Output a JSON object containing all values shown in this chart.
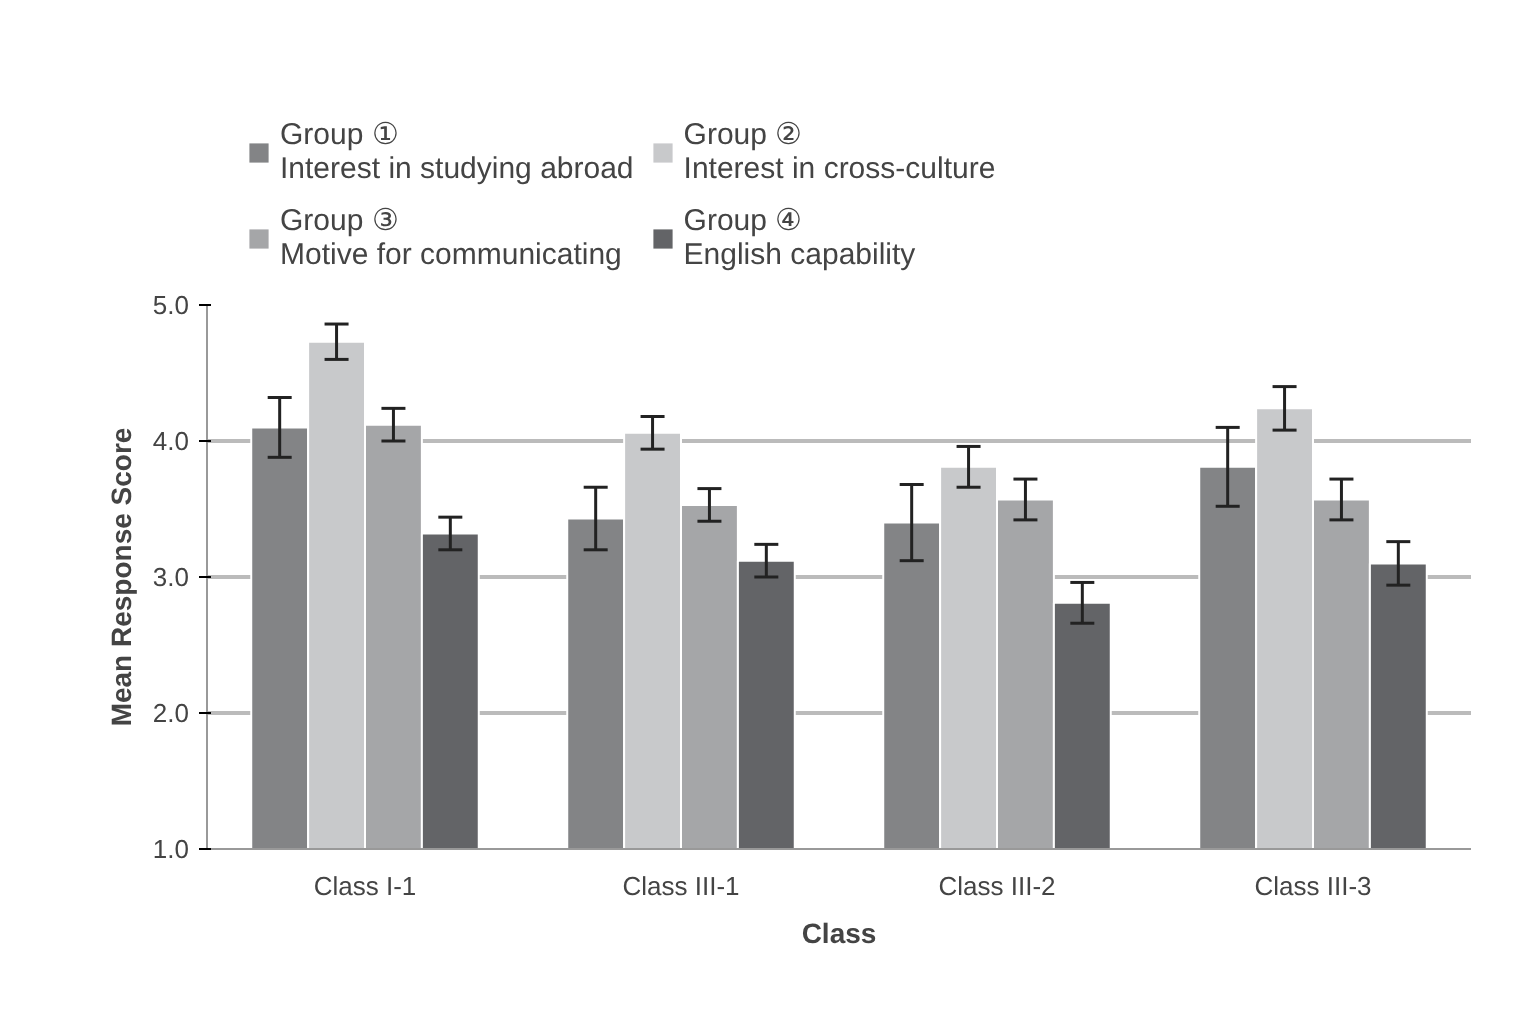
{
  "chart_data": {
    "type": "bar",
    "xlabel": "Class",
    "ylabel": "Mean Response Score",
    "categories": [
      "Class I-1",
      "Class III-1",
      "Class III-2",
      "Class III-3"
    ],
    "series": [
      {
        "name": "Group ①\nInterest in studying abroad",
        "color": "#838486",
        "values": [
          4.1,
          3.43,
          3.4,
          3.81
        ],
        "errors": [
          0.22,
          0.23,
          0.28,
          0.29
        ]
      },
      {
        "name": "Group ②\nInterest in cross-culture",
        "color": "#c8c9cb",
        "values": [
          4.73,
          4.06,
          3.81,
          4.24
        ],
        "errors": [
          0.13,
          0.12,
          0.15,
          0.16
        ]
      },
      {
        "name": "Group ③\nMotive for communicating",
        "color": "#a5a6a8",
        "values": [
          4.12,
          3.53,
          3.57,
          3.57
        ],
        "errors": [
          0.12,
          0.12,
          0.15,
          0.15
        ]
      },
      {
        "name": "Group ④\nEnglish capability",
        "color": "#636467",
        "values": [
          3.32,
          3.12,
          2.81,
          3.1
        ],
        "errors": [
          0.12,
          0.12,
          0.15,
          0.16
        ]
      }
    ],
    "ylim": [
      1.0,
      5.0
    ],
    "yticks": [
      {
        "value": 1,
        "label": "1.0"
      },
      {
        "value": 2,
        "label": "2.0"
      },
      {
        "value": 3,
        "label": "3.0"
      },
      {
        "value": 4,
        "label": "4.0"
      },
      {
        "value": 5,
        "label": "5.0"
      }
    ],
    "grid": "y",
    "legend": "top"
  }
}
